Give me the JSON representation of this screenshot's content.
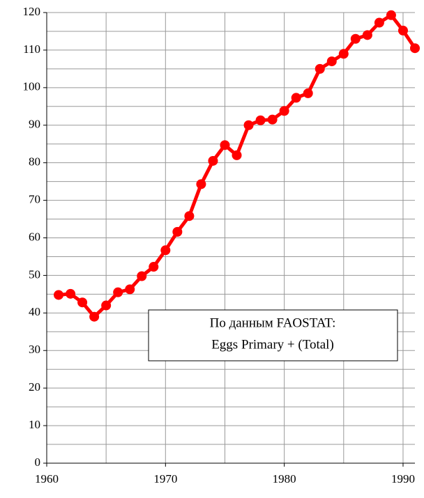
{
  "chart_data": {
    "type": "line",
    "x": [
      1961,
      1962,
      1963,
      1964,
      1965,
      1966,
      1967,
      1968,
      1969,
      1970,
      1971,
      1972,
      1973,
      1974,
      1975,
      1976,
      1977,
      1978,
      1979,
      1980,
      1981,
      1982,
      1983,
      1984,
      1985,
      1986,
      1987,
      1988,
      1989,
      1990,
      1991
    ],
    "series": [
      {
        "color": "#ff0000",
        "values": [
          44.8,
          45.1,
          42.8,
          39.0,
          42.0,
          45.5,
          46.3,
          49.8,
          52.3,
          56.7,
          61.6,
          65.8,
          74.3,
          80.5,
          84.7,
          82.0,
          90.0,
          91.3,
          91.5,
          93.8,
          97.3,
          98.5,
          105.0,
          107.0,
          109.0,
          113.0,
          114.0,
          117.3,
          119.3,
          115.2,
          110.5
        ]
      }
    ],
    "xlim": [
      1960,
      1991
    ],
    "xticks": [
      1960,
      1970,
      1980,
      1990
    ],
    "x_minor_ticks": [
      1965,
      1975,
      1985
    ],
    "ylim": [
      0,
      120
    ],
    "yticks": [
      0,
      10,
      20,
      30,
      40,
      50,
      60,
      70,
      80,
      90,
      100,
      110,
      120
    ],
    "y_minor_ticks": [
      5,
      15,
      25,
      35,
      45,
      55,
      65,
      75,
      85,
      95,
      105,
      115
    ],
    "grid": true,
    "annotations": [
      "По данным FAOSTAT:",
      "Eggs Primary + (Total)"
    ]
  }
}
